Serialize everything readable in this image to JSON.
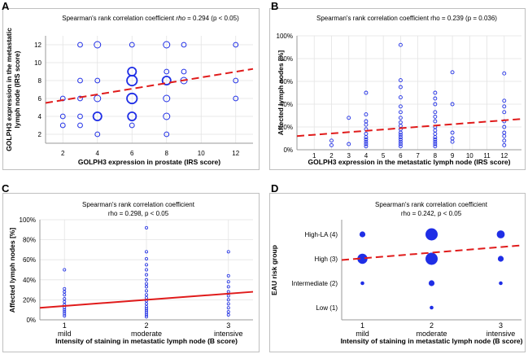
{
  "panel_letters": [
    "A",
    "B",
    "C",
    "D"
  ],
  "colors": {
    "points": "#1f2ee6",
    "trend": "#e01b1b",
    "grid": "#e3e3e3",
    "axis": "#9a9a9a",
    "text": "#000000"
  },
  "chart_data": [
    {
      "type": "scatter",
      "annotation": "Spearman's rank correlation coefficient rho = 0.294 (p < 0.05)",
      "annotation_parts": [
        "Spearman's rank correlation coefficient ",
        "rho",
        " = 0.294 (p < 0.05)"
      ],
      "xlabel": "GOLPH3 expression in prostate (IRS score)",
      "ylabel_lines": [
        "GOLPH3 expression in the metastatic",
        "lymph node (IRS score)"
      ],
      "xlim": [
        1,
        13
      ],
      "ylim": [
        1,
        13
      ],
      "xticks": [
        2,
        4,
        6,
        8,
        10,
        12
      ],
      "xtick_labels": [
        "2",
        "4",
        "6",
        "8",
        "10",
        "12"
      ],
      "yticks": [
        2,
        4,
        6,
        8,
        10,
        12
      ],
      "ytick_labels": [
        "2",
        "4",
        "6",
        "8",
        "10",
        "12"
      ],
      "trend": {
        "style": "dashed",
        "x": [
          1,
          13
        ],
        "y": [
          5.5,
          9.3
        ]
      },
      "points": [
        {
          "x": 2,
          "y": 6,
          "n": 1
        },
        {
          "x": 2,
          "y": 4,
          "n": 1
        },
        {
          "x": 2,
          "y": 3,
          "n": 1
        },
        {
          "x": 3,
          "y": 12,
          "n": 1
        },
        {
          "x": 3,
          "y": 8,
          "n": 1
        },
        {
          "x": 3,
          "y": 6,
          "n": 1
        },
        {
          "x": 3,
          "y": 4,
          "n": 1
        },
        {
          "x": 3,
          "y": 3,
          "n": 1
        },
        {
          "x": 4,
          "y": 12,
          "n": 2
        },
        {
          "x": 4,
          "y": 8,
          "n": 1
        },
        {
          "x": 4,
          "y": 6,
          "n": 2
        },
        {
          "x": 4,
          "y": 4,
          "n": 3
        },
        {
          "x": 4,
          "y": 2,
          "n": 1
        },
        {
          "x": 6,
          "y": 12,
          "n": 1
        },
        {
          "x": 6,
          "y": 9,
          "n": 3
        },
        {
          "x": 6,
          "y": 8,
          "n": 4
        },
        {
          "x": 6,
          "y": 6,
          "n": 4
        },
        {
          "x": 6,
          "y": 4,
          "n": 3
        },
        {
          "x": 6,
          "y": 3,
          "n": 1
        },
        {
          "x": 8,
          "y": 12,
          "n": 2
        },
        {
          "x": 8,
          "y": 9,
          "n": 1
        },
        {
          "x": 8,
          "y": 8,
          "n": 3
        },
        {
          "x": 8,
          "y": 6,
          "n": 2
        },
        {
          "x": 8,
          "y": 4,
          "n": 2
        },
        {
          "x": 8,
          "y": 2,
          "n": 1
        },
        {
          "x": 9,
          "y": 12,
          "n": 1
        },
        {
          "x": 9,
          "y": 9,
          "n": 1
        },
        {
          "x": 9,
          "y": 8,
          "n": 2
        },
        {
          "x": 12,
          "y": 12,
          "n": 1
        },
        {
          "x": 12,
          "y": 8,
          "n": 1
        },
        {
          "x": 12,
          "y": 6,
          "n": 1
        }
      ]
    },
    {
      "type": "scatter",
      "annotation": "Spearman's rank correlation coefficient rho = 0.239 (p = 0.036)",
      "xlabel": "GOLPH3 expression in the metastatic lymph node (IRS score)",
      "ylabel": "Affected lymph nodes [%]",
      "xlim": [
        0,
        13
      ],
      "ylim": [
        0,
        100
      ],
      "xticks": [
        1,
        2,
        3,
        4,
        5,
        6,
        7,
        8,
        9,
        10,
        11,
        12
      ],
      "xtick_labels": [
        "1",
        "2",
        "3",
        "4",
        "5",
        "6",
        "7",
        "8",
        "9",
        "10",
        "11",
        "12"
      ],
      "yticks": [
        0,
        20,
        40,
        60,
        80,
        100
      ],
      "ytick_labels": [
        "0%",
        "20%",
        "40%",
        "60%",
        "80%",
        "100%"
      ],
      "trend": {
        "style": "dashed",
        "x": [
          0,
          13
        ],
        "y": [
          12,
          27
        ]
      },
      "points": [
        {
          "x": 2,
          "y": 8
        },
        {
          "x": 2,
          "y": 4
        },
        {
          "x": 3,
          "y": 28
        },
        {
          "x": 3,
          "y": 5
        },
        {
          "x": 4,
          "y": 50
        },
        {
          "x": 4,
          "y": 31
        },
        {
          "x": 4,
          "y": 25
        },
        {
          "x": 4,
          "y": 22
        },
        {
          "x": 4,
          "y": 18
        },
        {
          "x": 4,
          "y": 14
        },
        {
          "x": 4,
          "y": 11
        },
        {
          "x": 4,
          "y": 9
        },
        {
          "x": 4,
          "y": 7
        },
        {
          "x": 4,
          "y": 5
        },
        {
          "x": 4,
          "y": 3
        },
        {
          "x": 6,
          "y": 92
        },
        {
          "x": 6,
          "y": 61
        },
        {
          "x": 6,
          "y": 55
        },
        {
          "x": 6,
          "y": 46
        },
        {
          "x": 6,
          "y": 38
        },
        {
          "x": 6,
          "y": 33
        },
        {
          "x": 6,
          "y": 28
        },
        {
          "x": 6,
          "y": 24
        },
        {
          "x": 6,
          "y": 21
        },
        {
          "x": 6,
          "y": 18
        },
        {
          "x": 6,
          "y": 15
        },
        {
          "x": 6,
          "y": 13
        },
        {
          "x": 6,
          "y": 11
        },
        {
          "x": 6,
          "y": 9
        },
        {
          "x": 6,
          "y": 7
        },
        {
          "x": 6,
          "y": 5
        },
        {
          "x": 6,
          "y": 3
        },
        {
          "x": 8,
          "y": 50
        },
        {
          "x": 8,
          "y": 45
        },
        {
          "x": 8,
          "y": 40
        },
        {
          "x": 8,
          "y": 33
        },
        {
          "x": 8,
          "y": 29
        },
        {
          "x": 8,
          "y": 25
        },
        {
          "x": 8,
          "y": 20
        },
        {
          "x": 8,
          "y": 17
        },
        {
          "x": 8,
          "y": 14
        },
        {
          "x": 8,
          "y": 11
        },
        {
          "x": 8,
          "y": 9
        },
        {
          "x": 8,
          "y": 7
        },
        {
          "x": 8,
          "y": 5
        },
        {
          "x": 8,
          "y": 3
        },
        {
          "x": 9,
          "y": 68
        },
        {
          "x": 9,
          "y": 40
        },
        {
          "x": 9,
          "y": 15
        },
        {
          "x": 9,
          "y": 10
        },
        {
          "x": 9,
          "y": 7
        },
        {
          "x": 12,
          "y": 67
        },
        {
          "x": 12,
          "y": 43
        },
        {
          "x": 12,
          "y": 38
        },
        {
          "x": 12,
          "y": 33
        },
        {
          "x": 12,
          "y": 25
        },
        {
          "x": 12,
          "y": 20
        },
        {
          "x": 12,
          "y": 15
        },
        {
          "x": 12,
          "y": 12
        },
        {
          "x": 12,
          "y": 8
        },
        {
          "x": 12,
          "y": 4
        }
      ]
    },
    {
      "type": "scatter",
      "annotation_lines": [
        "Spearman's rank correlation coefficient",
        "rho = 0.298,  p < 0.05"
      ],
      "xlabel": "Intensity of staining in metastatic lymph node (B score)",
      "ylabel": "Affected lymph nodes [%]",
      "xlim": [
        0.7,
        3.3
      ],
      "ylim": [
        0,
        100
      ],
      "xticks": [
        1,
        2,
        3
      ],
      "xtick_labels": [
        [
          "1",
          "mild"
        ],
        [
          "2",
          "moderate"
        ],
        [
          "3",
          "intensive"
        ]
      ],
      "yticks": [
        0,
        20,
        40,
        60,
        80,
        100
      ],
      "ytick_labels": [
        "0%",
        "20%",
        "40%",
        "60%",
        "80%",
        "100%"
      ],
      "trend": {
        "style": "solid",
        "x": [
          0.7,
          3.3
        ],
        "y": [
          12,
          28
        ]
      },
      "points": [
        {
          "x": 1,
          "y": 50
        },
        {
          "x": 1,
          "y": 31
        },
        {
          "x": 1,
          "y": 28
        },
        {
          "x": 1,
          "y": 25
        },
        {
          "x": 1,
          "y": 21
        },
        {
          "x": 1,
          "y": 18
        },
        {
          "x": 1,
          "y": 15
        },
        {
          "x": 1,
          "y": 12
        },
        {
          "x": 1,
          "y": 10
        },
        {
          "x": 1,
          "y": 8
        },
        {
          "x": 1,
          "y": 6
        },
        {
          "x": 1,
          "y": 4
        },
        {
          "x": 2,
          "y": 92
        },
        {
          "x": 2,
          "y": 68
        },
        {
          "x": 2,
          "y": 61
        },
        {
          "x": 2,
          "y": 55
        },
        {
          "x": 2,
          "y": 50
        },
        {
          "x": 2,
          "y": 45
        },
        {
          "x": 2,
          "y": 40
        },
        {
          "x": 2,
          "y": 36
        },
        {
          "x": 2,
          "y": 33
        },
        {
          "x": 2,
          "y": 29
        },
        {
          "x": 2,
          "y": 25
        },
        {
          "x": 2,
          "y": 22
        },
        {
          "x": 2,
          "y": 19
        },
        {
          "x": 2,
          "y": 16
        },
        {
          "x": 2,
          "y": 13
        },
        {
          "x": 2,
          "y": 11
        },
        {
          "x": 2,
          "y": 9
        },
        {
          "x": 2,
          "y": 7
        },
        {
          "x": 2,
          "y": 5
        },
        {
          "x": 2,
          "y": 3
        },
        {
          "x": 3,
          "y": 68
        },
        {
          "x": 3,
          "y": 44
        },
        {
          "x": 3,
          "y": 38
        },
        {
          "x": 3,
          "y": 33
        },
        {
          "x": 3,
          "y": 28
        },
        {
          "x": 3,
          "y": 24
        },
        {
          "x": 3,
          "y": 20
        },
        {
          "x": 3,
          "y": 16
        },
        {
          "x": 3,
          "y": 12
        },
        {
          "x": 3,
          "y": 8
        },
        {
          "x": 3,
          "y": 5
        }
      ]
    },
    {
      "type": "scatter",
      "annotation_lines": [
        "Spearman's rank correlation coefficient",
        "rho = 0.242,  p < 0.05"
      ],
      "xlabel": "Intensity of staining in metastatic lymph node (B score)",
      "ylabel": "EAU risk group",
      "xlim": [
        0.7,
        3.3
      ],
      "ylim": [
        0.5,
        4.6
      ],
      "xticks": [
        1,
        2,
        3
      ],
      "xtick_labels": [
        [
          "1",
          "mild"
        ],
        [
          "2",
          "moderate"
        ],
        [
          "3",
          "intensive"
        ]
      ],
      "yticks": [
        1,
        2,
        3,
        4
      ],
      "ytick_labels": [
        "Low (1)",
        "Intermediate (2)",
        "High (3)",
        "High-LA (4)"
      ],
      "trend": {
        "style": "dashed",
        "x": [
          0.7,
          3.3
        ],
        "y": [
          2.95,
          3.55
        ]
      },
      "points": [
        {
          "x": 1,
          "y": 4,
          "n": 2
        },
        {
          "x": 1,
          "y": 3,
          "n": 4
        },
        {
          "x": 1,
          "y": 2,
          "n": 1
        },
        {
          "x": 2,
          "y": 4,
          "n": 5
        },
        {
          "x": 2,
          "y": 3,
          "n": 5
        },
        {
          "x": 2,
          "y": 2,
          "n": 2
        },
        {
          "x": 2,
          "y": 1,
          "n": 1
        },
        {
          "x": 3,
          "y": 4,
          "n": 3
        },
        {
          "x": 3,
          "y": 3,
          "n": 2
        },
        {
          "x": 3,
          "y": 2,
          "n": 1
        }
      ]
    }
  ]
}
